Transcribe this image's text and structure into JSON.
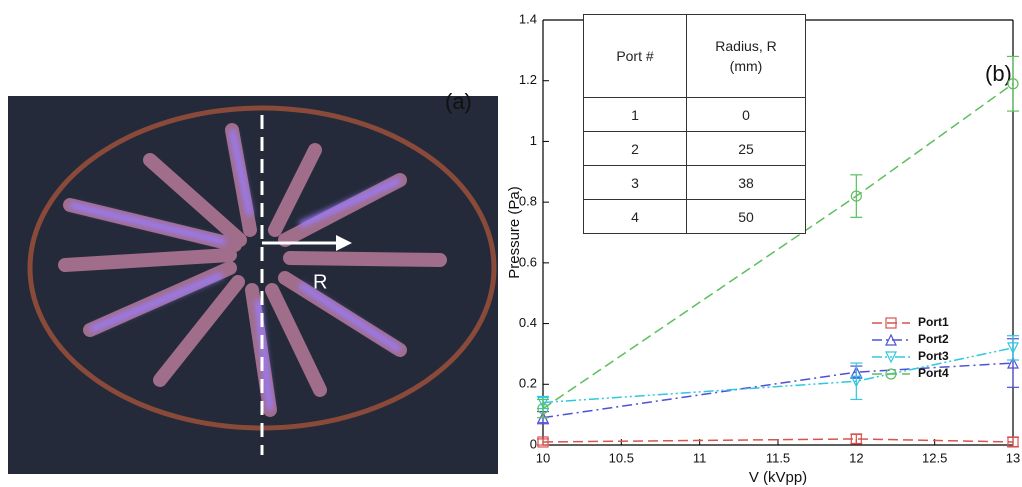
{
  "photo_labels": {
    "panel": "(a)",
    "arrow": "R"
  },
  "table": {
    "header": [
      "Port #",
      "Radius, R (mm)"
    ],
    "rows": [
      [
        "1",
        "0"
      ],
      [
        "2",
        "25"
      ],
      [
        "3",
        "38"
      ],
      [
        "4",
        "50"
      ]
    ]
  },
  "chart_data": {
    "type": "line",
    "panel_label": "(b)",
    "x_label": "V (kVpp)",
    "y_label": "Pressure (Pa)",
    "x": [
      10,
      12,
      13
    ],
    "xlim": [
      10,
      13
    ],
    "xticks": [
      10,
      10.5,
      11,
      11.5,
      12,
      12.5,
      13
    ],
    "ylim": [
      0,
      1.4
    ],
    "yticks": [
      0,
      0.2,
      0.4,
      0.6,
      0.8,
      1,
      1.2,
      1.4
    ],
    "series": [
      {
        "name": "Port1",
        "color": "#d9534f",
        "marker": "square",
        "linestyle": "dashed",
        "values": [
          0.01,
          0.02,
          0.01
        ],
        "errors": [
          0.01,
          0.015,
          0.015
        ]
      },
      {
        "name": "Port2",
        "color": "#5050d8",
        "marker": "triangle",
        "linestyle": "dashdot",
        "values": [
          0.09,
          0.24,
          0.27
        ],
        "errors": [
          0.02,
          0.02,
          0.08
        ]
      },
      {
        "name": "Port3",
        "color": "#30c8e0",
        "marker": "triangle-down",
        "linestyle": "dashdotdot",
        "values": [
          0.14,
          0.21,
          0.32
        ],
        "errors": [
          0.02,
          0.06,
          0.04
        ]
      },
      {
        "name": "Port4",
        "color": "#5cbf5c",
        "marker": "circle",
        "linestyle": "dashed",
        "values": [
          0.12,
          0.82,
          1.19
        ],
        "errors": [
          0.03,
          0.07,
          0.09
        ]
      }
    ]
  }
}
